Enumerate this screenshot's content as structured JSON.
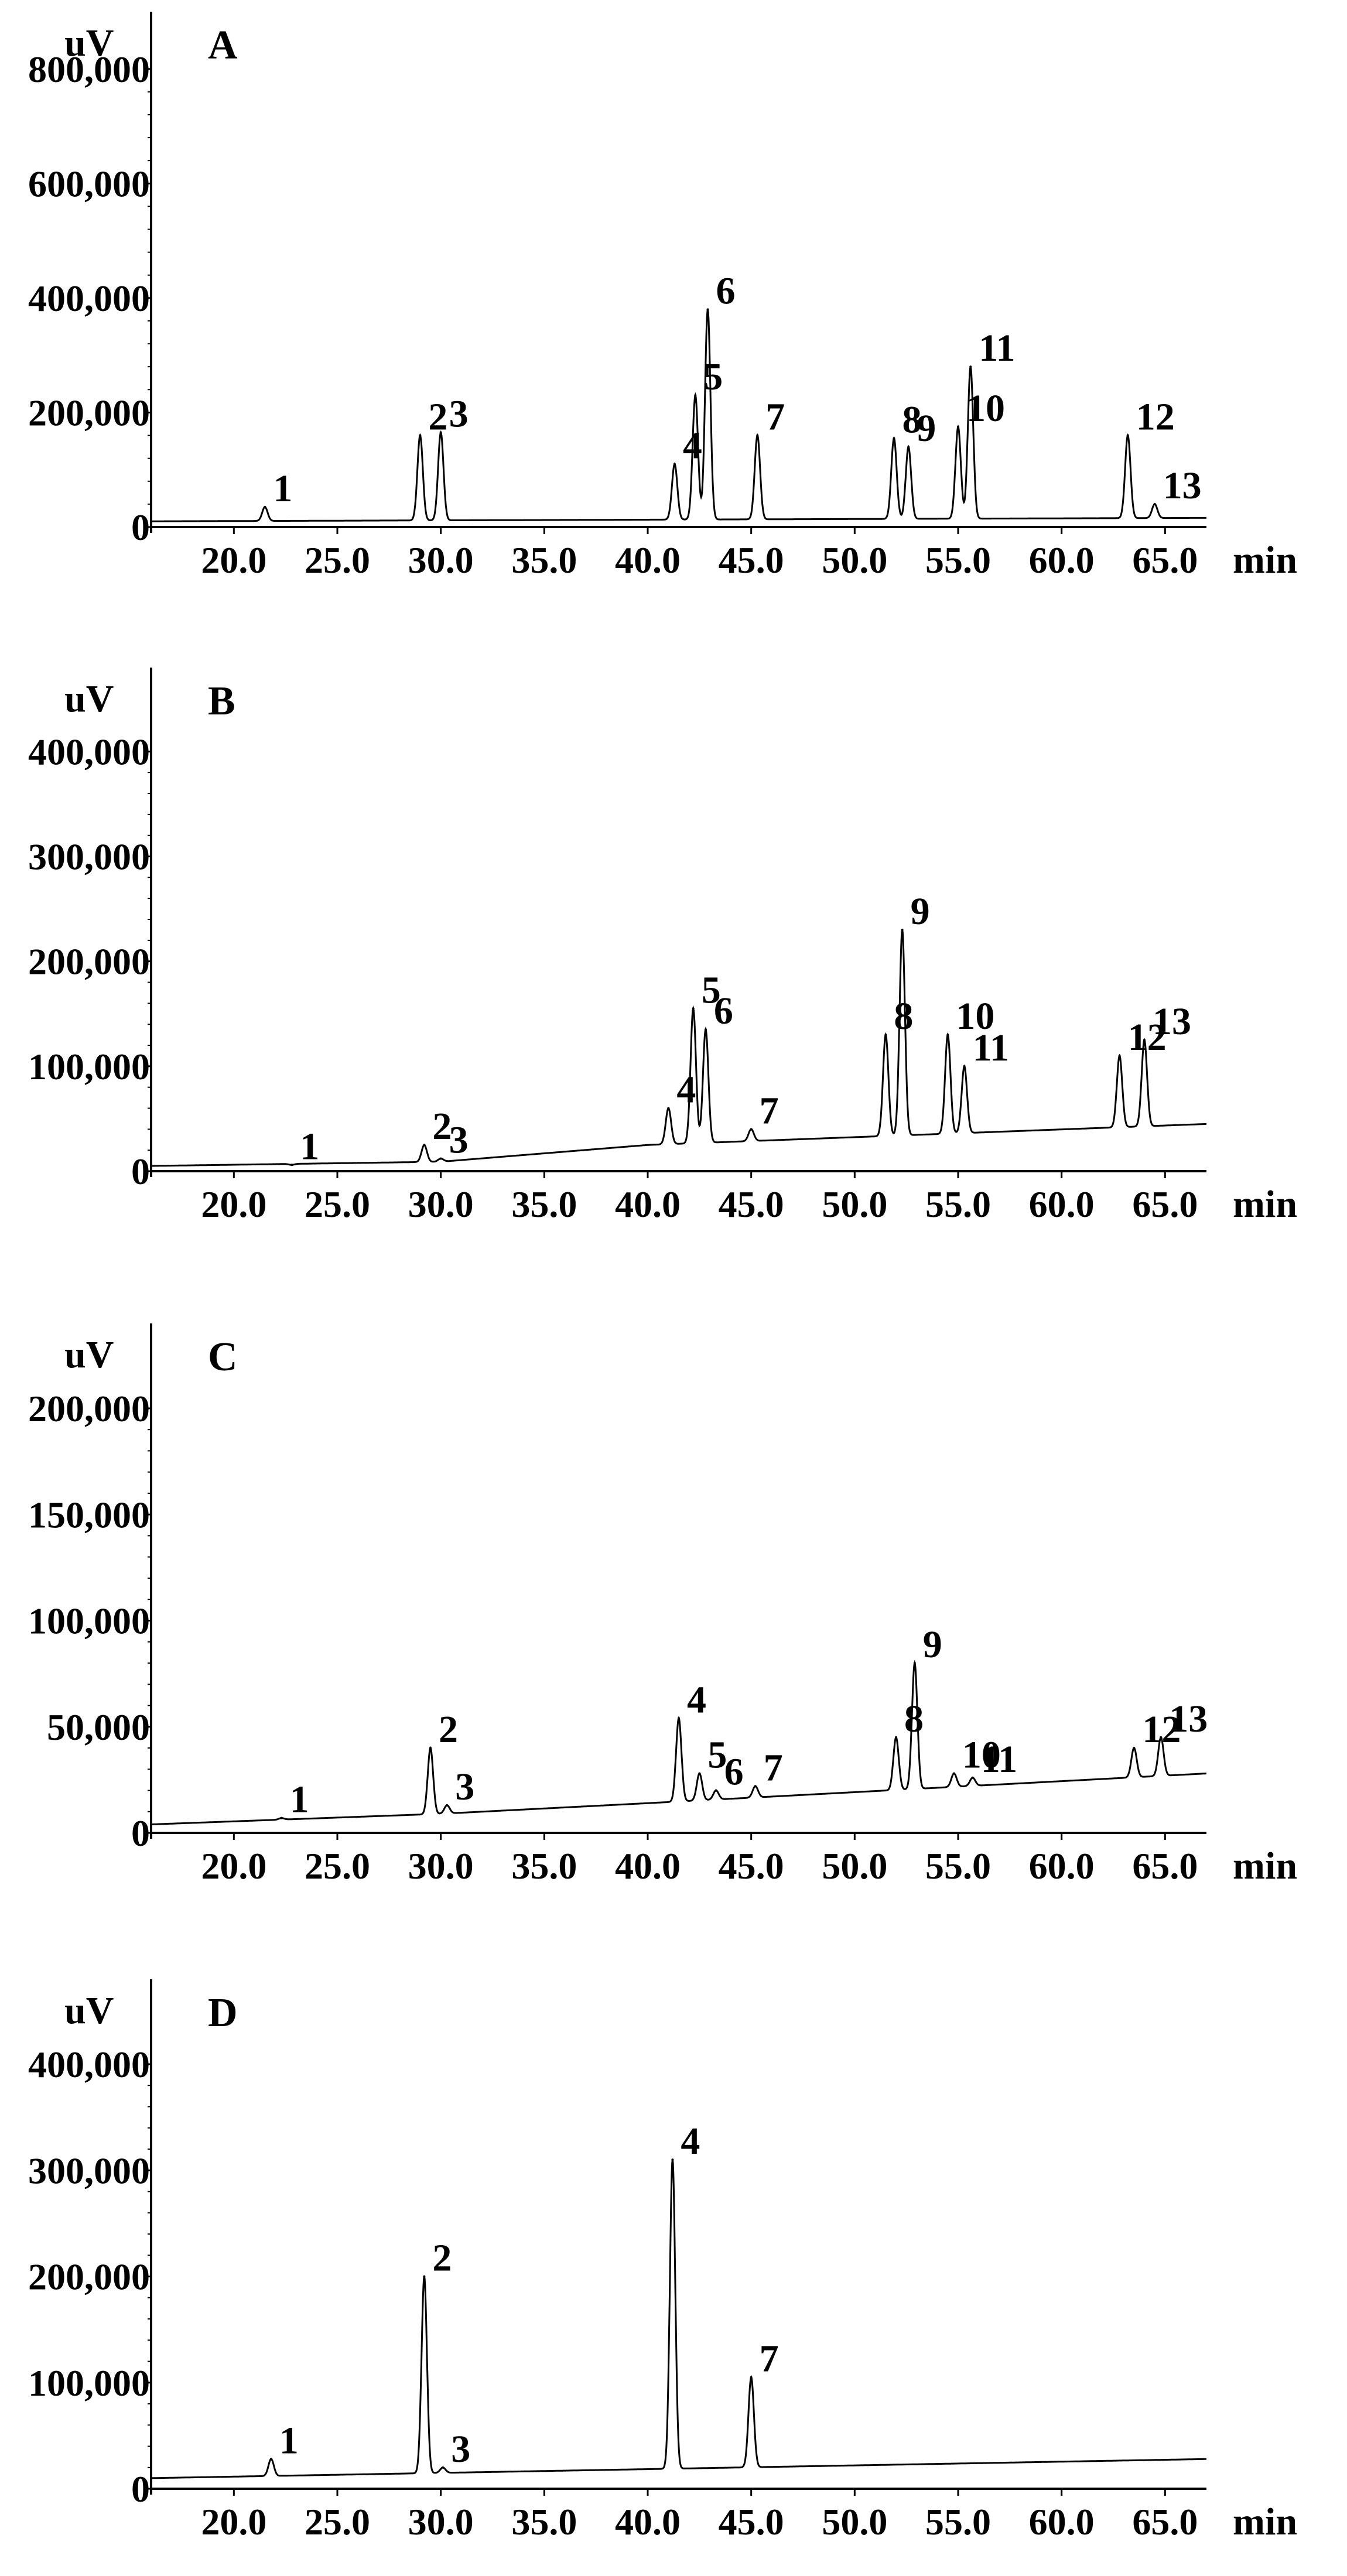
{
  "figure": {
    "panels": [
      "A",
      "B",
      "C",
      "D"
    ]
  },
  "chart_data": [
    {
      "type": "line",
      "panel": "A",
      "ylabel": "uV",
      "xlabel": "min",
      "xlim": [
        16.0,
        67.0
      ],
      "ylim": [
        0,
        900000
      ],
      "y_ticks": [
        "0",
        "200,000",
        "400,000",
        "600,000",
        "800,000"
      ],
      "y_tick_values": [
        0,
        200000,
        400000,
        600000,
        800000
      ],
      "x_ticks": [
        "20.0",
        "25.0",
        "30.0",
        "35.0",
        "40.0",
        "45.0",
        "50.0",
        "55.0",
        "60.0",
        "65.0"
      ],
      "x_tick_values": [
        20,
        25,
        30,
        35,
        40,
        45,
        50,
        55,
        60,
        65
      ],
      "baseline": [
        [
          16.0,
          10000
        ],
        [
          67.0,
          16000
        ]
      ],
      "peaks": [
        {
          "x": 21.5,
          "y": 35000,
          "label": "1"
        },
        {
          "x": 29.0,
          "y": 160000,
          "label": "2"
        },
        {
          "x": 30.0,
          "y": 165000,
          "label": "3"
        },
        {
          "x": 41.3,
          "y": 110000,
          "label": "4"
        },
        {
          "x": 42.3,
          "y": 230000,
          "label": "5"
        },
        {
          "x": 42.9,
          "y": 380000,
          "label": "6"
        },
        {
          "x": 45.3,
          "y": 160000,
          "label": "7"
        },
        {
          "x": 51.9,
          "y": 155000,
          "label": "8"
        },
        {
          "x": 52.6,
          "y": 140000,
          "label": "9"
        },
        {
          "x": 55.0,
          "y": 175000,
          "label": "10"
        },
        {
          "x": 55.6,
          "y": 280000,
          "label": "11"
        },
        {
          "x": 63.2,
          "y": 160000,
          "label": "12"
        },
        {
          "x": 64.5,
          "y": 40000,
          "label": "13"
        }
      ]
    },
    {
      "type": "line",
      "panel": "B",
      "ylabel": "uV",
      "xlabel": "min",
      "xlim": [
        16.0,
        67.0
      ],
      "ylim": [
        0,
        480000
      ],
      "y_ticks": [
        "0",
        "100,000",
        "200,000",
        "300,000",
        "400,000"
      ],
      "y_tick_values": [
        0,
        100000,
        200000,
        300000,
        400000
      ],
      "x_ticks": [
        "20.0",
        "25.0",
        "30.0",
        "35.0",
        "40.0",
        "45.0",
        "50.0",
        "55.0",
        "60.0",
        "65.0"
      ],
      "x_tick_values": [
        20,
        25,
        30,
        35,
        40,
        45,
        50,
        55,
        60,
        65
      ],
      "baseline": [
        [
          16.0,
          5000
        ],
        [
          30.0,
          9000
        ],
        [
          40.0,
          25000
        ],
        [
          67.0,
          45000
        ]
      ],
      "peaks": [
        {
          "x": 22.8,
          "y": 6000,
          "label": "1"
        },
        {
          "x": 29.2,
          "y": 25000,
          "label": "2"
        },
        {
          "x": 30.0,
          "y": 12000,
          "label": "3"
        },
        {
          "x": 41.0,
          "y": 60000,
          "label": "4"
        },
        {
          "x": 42.2,
          "y": 155000,
          "label": "5"
        },
        {
          "x": 42.8,
          "y": 135000,
          "label": "6"
        },
        {
          "x": 45.0,
          "y": 40000,
          "label": "7"
        },
        {
          "x": 51.5,
          "y": 130000,
          "label": "8"
        },
        {
          "x": 52.3,
          "y": 230000,
          "label": "9"
        },
        {
          "x": 54.5,
          "y": 130000,
          "label": "10"
        },
        {
          "x": 55.3,
          "y": 100000,
          "label": "11"
        },
        {
          "x": 62.8,
          "y": 110000,
          "label": "12"
        },
        {
          "x": 64.0,
          "y": 125000,
          "label": "13"
        }
      ]
    },
    {
      "type": "line",
      "panel": "C",
      "ylabel": "uV",
      "xlabel": "min",
      "xlim": [
        16.0,
        67.0
      ],
      "ylim": [
        0,
        240000
      ],
      "y_ticks": [
        "0",
        "50,000",
        "100,000",
        "150,000",
        "200,000"
      ],
      "y_tick_values": [
        0,
        50000,
        100000,
        150000,
        200000
      ],
      "x_ticks": [
        "20.0",
        "25.0",
        "30.0",
        "35.0",
        "40.0",
        "45.0",
        "50.0",
        "55.0",
        "60.0",
        "65.0"
      ],
      "x_tick_values": [
        20,
        25,
        30,
        35,
        40,
        45,
        50,
        55,
        60,
        65
      ],
      "baseline": [
        [
          16.0,
          4000
        ],
        [
          30.0,
          9000
        ],
        [
          40.0,
          14000
        ],
        [
          67.0,
          28000
        ]
      ],
      "peaks": [
        {
          "x": 22.3,
          "y": 7000,
          "label": "1"
        },
        {
          "x": 29.5,
          "y": 40000,
          "label": "2"
        },
        {
          "x": 30.3,
          "y": 13000,
          "label": "3"
        },
        {
          "x": 41.5,
          "y": 54000,
          "label": "4"
        },
        {
          "x": 42.5,
          "y": 28000,
          "label": "5"
        },
        {
          "x": 43.3,
          "y": 20000,
          "label": "6"
        },
        {
          "x": 45.2,
          "y": 22000,
          "label": "7"
        },
        {
          "x": 52.0,
          "y": 45000,
          "label": "8"
        },
        {
          "x": 52.9,
          "y": 80000,
          "label": "9"
        },
        {
          "x": 54.8,
          "y": 28000,
          "label": "10"
        },
        {
          "x": 55.7,
          "y": 26000,
          "label": "11"
        },
        {
          "x": 63.5,
          "y": 40000,
          "label": "12"
        },
        {
          "x": 64.8,
          "y": 45000,
          "label": "13"
        }
      ]
    },
    {
      "type": "line",
      "panel": "D",
      "ylabel": "uV",
      "xlabel": "min",
      "xlim": [
        16.0,
        67.0
      ],
      "ylim": [
        0,
        480000
      ],
      "y_ticks": [
        "0",
        "100,000",
        "200,000",
        "300,000",
        "400,000"
      ],
      "y_tick_values": [
        0,
        100000,
        200000,
        300000,
        400000
      ],
      "x_ticks": [
        "20.0",
        "25.0",
        "30.0",
        "35.0",
        "40.0",
        "45.0",
        "50.0",
        "55.0",
        "60.0",
        "65.0"
      ],
      "x_tick_values": [
        20,
        25,
        30,
        35,
        40,
        45,
        50,
        55,
        60,
        65
      ],
      "baseline": [
        [
          16.0,
          10000
        ],
        [
          67.0,
          28000
        ]
      ],
      "peaks": [
        {
          "x": 21.8,
          "y": 28000,
          "label": "1"
        },
        {
          "x": 29.2,
          "y": 200000,
          "label": "2"
        },
        {
          "x": 30.1,
          "y": 20000,
          "label": "3"
        },
        {
          "x": 41.2,
          "y": 310000,
          "label": "4"
        },
        {
          "x": 45.0,
          "y": 105000,
          "label": "7"
        }
      ]
    }
  ]
}
